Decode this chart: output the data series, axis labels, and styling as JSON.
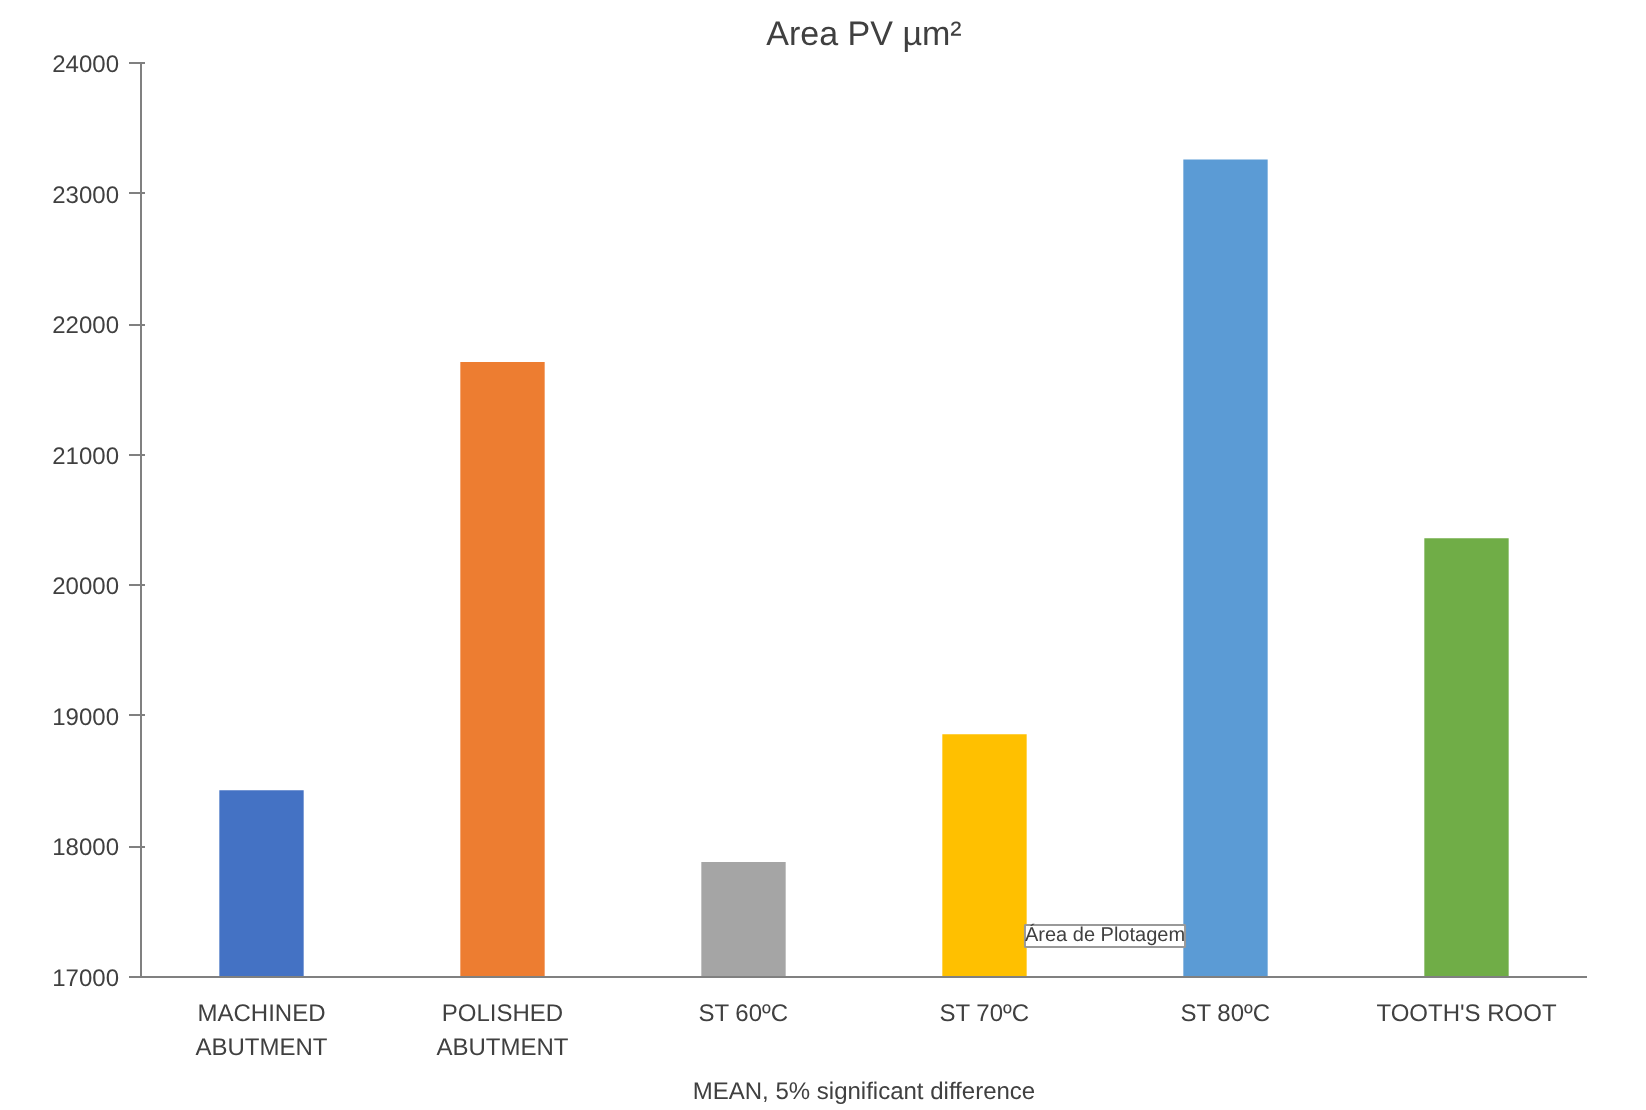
{
  "chart_data": {
    "type": "bar",
    "title": "Area PV µm²",
    "xlabel": "MEAN, 5% significant difference",
    "categories": [
      "MACHINED\nABUTMENT",
      "POLISHED\nABUTMENT",
      "ST 60ºC",
      "ST 70ºC",
      "ST 80ºC",
      "TOOTH'S ROOT"
    ],
    "values": [
      18430,
      21710,
      17880,
      18860,
      23260,
      20360
    ],
    "colors": [
      "#4472c4",
      "#ed7d31",
      "#a5a5a5",
      "#ffc000",
      "#5b9bd5",
      "#70ad47"
    ],
    "ylim": [
      17000,
      24000
    ],
    "yticks": [
      17000,
      18000,
      19000,
      20000,
      21000,
      22000,
      23000,
      24000
    ],
    "grid": false,
    "annotations": [
      "Área de Plotagem"
    ]
  }
}
